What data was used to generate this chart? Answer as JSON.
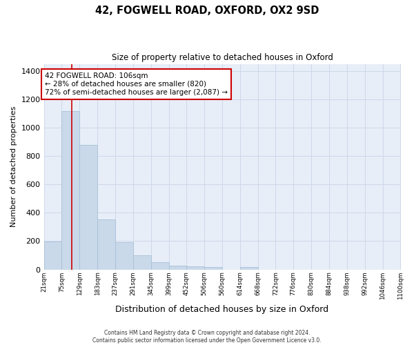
{
  "title": "42, FOGWELL ROAD, OXFORD, OX2 9SD",
  "subtitle": "Size of property relative to detached houses in Oxford",
  "xlabel": "Distribution of detached houses by size in Oxford",
  "ylabel": "Number of detached properties",
  "bar_color": "#c9d9ea",
  "bar_edge_color": "#a8c0d8",
  "grid_color": "#cdd8e8",
  "background_color": "#e8eef8",
  "vline_color": "#cc0000",
  "vline_x": 106,
  "annotation_line1": "42 FOGWELL ROAD: 106sqm",
  "annotation_line2": "← 28% of detached houses are smaller (820)",
  "annotation_line3": "72% of semi-detached houses are larger (2,087) →",
  "bins": [
    21,
    75,
    129,
    183,
    237,
    291,
    345,
    399,
    452,
    506,
    560,
    614,
    668,
    722,
    776,
    830,
    884,
    938,
    992,
    1046,
    1100
  ],
  "counts": [
    196,
    1120,
    878,
    352,
    192,
    100,
    52,
    25,
    22,
    15,
    0,
    15,
    0,
    0,
    0,
    0,
    0,
    0,
    0,
    0
  ],
  "ylim": [
    0,
    1450
  ],
  "yticks": [
    0,
    200,
    400,
    600,
    800,
    1000,
    1200,
    1400
  ],
  "footer": "Contains HM Land Registry data © Crown copyright and database right 2024.\nContains public sector information licensed under the Open Government Licence v3.0."
}
